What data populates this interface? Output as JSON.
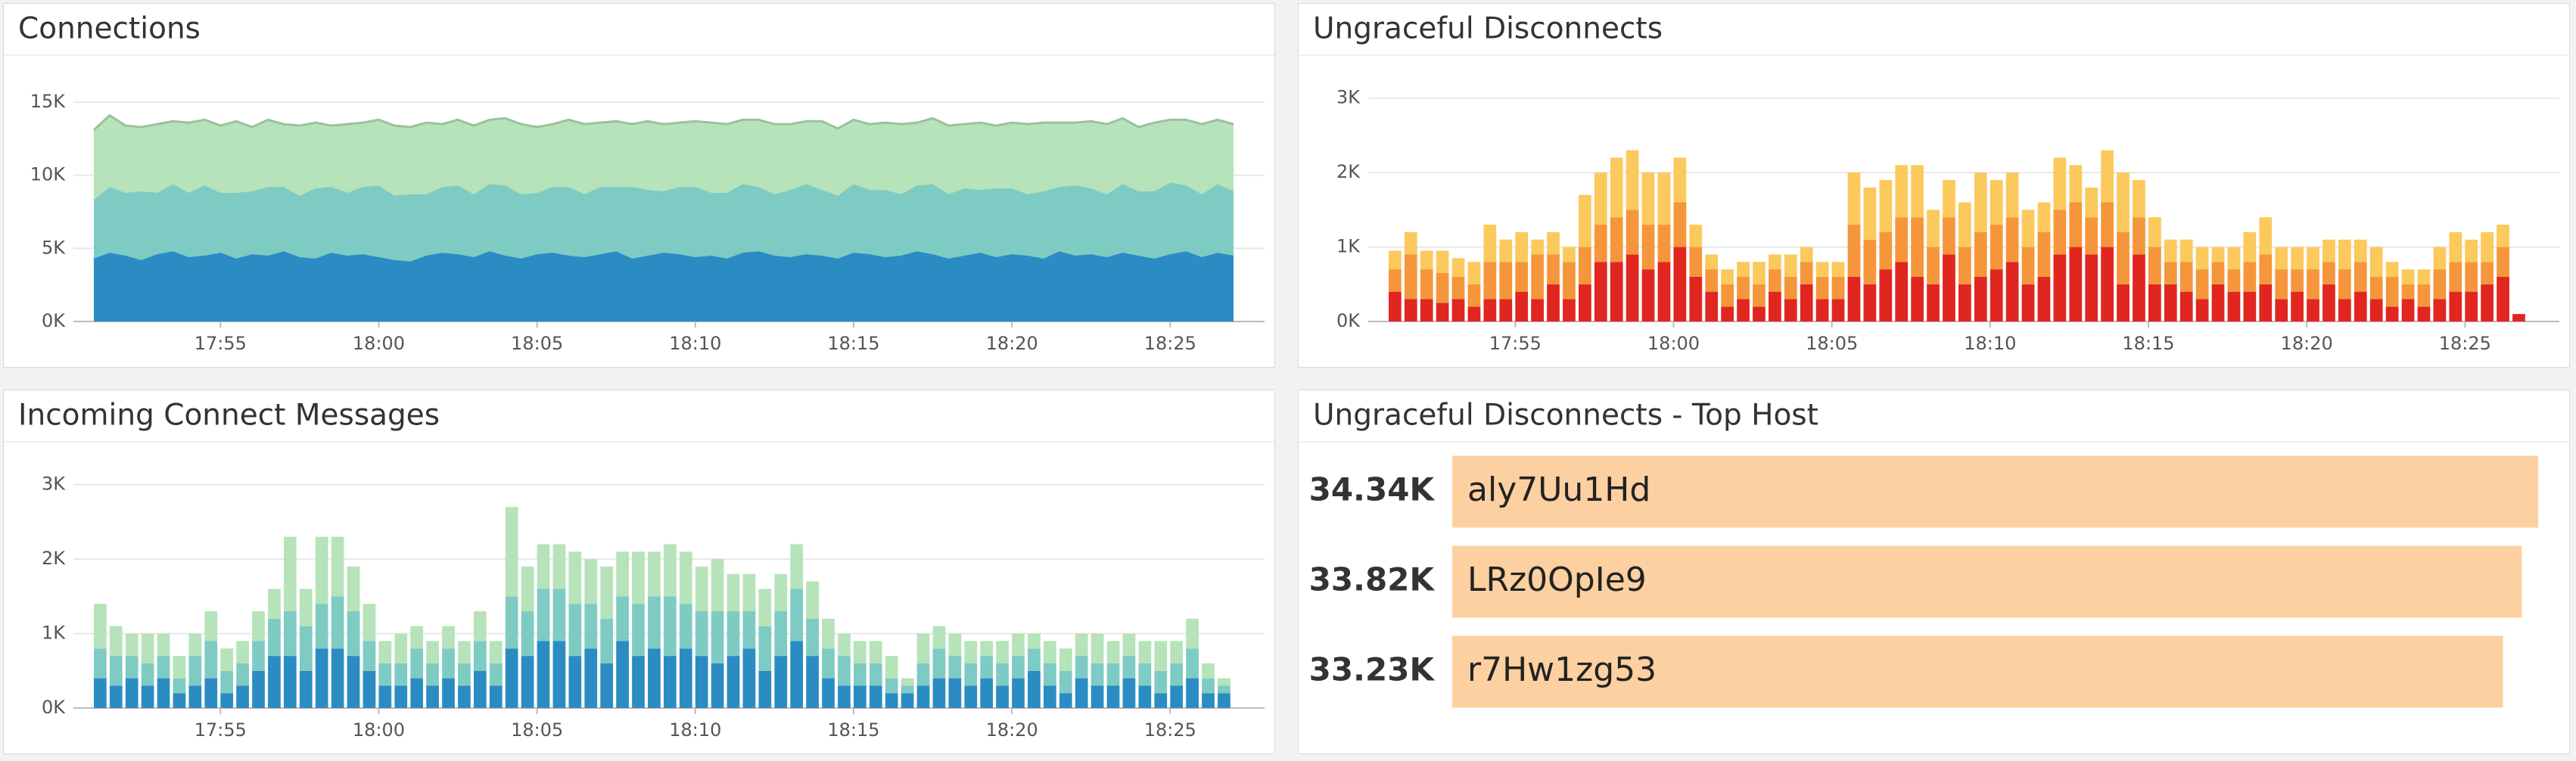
{
  "chart_data": [
    {
      "type": "area",
      "title": "Connections",
      "x": [
        1071,
        1071.5,
        1072,
        1072.5,
        1073,
        1073.5,
        1074,
        1074.5,
        1075,
        1075.5,
        1076,
        1076.5,
        1077,
        1077.5,
        1078,
        1078.5,
        1079,
        1079.5,
        1080,
        1080.5,
        1081,
        1081.5,
        1082,
        1082.5,
        1083,
        1083.5,
        1084,
        1084.5,
        1085,
        1085.5,
        1086,
        1086.5,
        1087,
        1087.5,
        1088,
        1088.5,
        1089,
        1089.5,
        1090,
        1090.5,
        1091,
        1091.5,
        1092,
        1092.5,
        1093,
        1093.5,
        1094,
        1094.5,
        1095,
        1095.5,
        1096,
        1096.5,
        1097,
        1097.5,
        1098,
        1098.5,
        1099,
        1099.5,
        1100,
        1100.5,
        1101,
        1101.5,
        1102,
        1102.5,
        1103,
        1103.5,
        1104,
        1104.5,
        1105,
        1105.5,
        1106,
        1106.5,
        1107
      ],
      "series": [
        {
          "color": "#2b8cc4",
          "values": [
            4300,
            4700,
            4500,
            4200,
            4600,
            4800,
            4400,
            4500,
            4700,
            4300,
            4600,
            4500,
            4800,
            4400,
            4300,
            4700,
            4500,
            4600,
            4400,
            4200,
            4100,
            4500,
            4700,
            4600,
            4400,
            4800,
            4500,
            4300,
            4600,
            4700,
            4500,
            4400,
            4600,
            4800,
            4300,
            4500,
            4700,
            4600,
            4400,
            4500,
            4300,
            4700,
            4800,
            4500,
            4400,
            4600,
            4500,
            4300,
            4700,
            4600,
            4400,
            4500,
            4800,
            4600,
            4300,
            4500,
            4700,
            4400,
            4600,
            4500,
            4300,
            4800,
            4500,
            4600,
            4400,
            4700,
            4500,
            4300,
            4600,
            4800,
            4400,
            4700,
            4500
          ]
        },
        {
          "color": "#7ecbc3",
          "values": [
            4000,
            4500,
            4300,
            4700,
            4200,
            4600,
            4400,
            4800,
            4100,
            4500,
            4300,
            4700,
            4400,
            4200,
            4800,
            4500,
            4300,
            4600,
            4900,
            4400,
            4600,
            4200,
            4500,
            4700,
            4300,
            4600,
            4800,
            4400,
            4200,
            4500,
            4700,
            4300,
            4600,
            4400,
            4900,
            4500,
            4200,
            4600,
            4800,
            4300,
            4500,
            4700,
            4400,
            4200,
            4600,
            4800,
            4500,
            4300,
            4700,
            4400,
            4600,
            4200,
            4500,
            4800,
            4400,
            4600,
            4300,
            4700,
            4500,
            4200,
            4600,
            4400,
            4800,
            4500,
            4300,
            4700,
            4400,
            4600,
            4900,
            4500,
            4300,
            4700,
            4400
          ]
        },
        {
          "color": "#b6e3ba",
          "values": [
            4800,
            4900,
            4600,
            4400,
            4700,
            4300,
            4800,
            4500,
            4600,
            4900,
            4400,
            4600,
            4300,
            4800,
            4500,
            4200,
            4700,
            4400,
            4500,
            4800,
            4600,
            4900,
            4300,
            4500,
            4700,
            4400,
            4600,
            4800,
            4500,
            4300,
            4600,
            4800,
            4400,
            4500,
            4300,
            4700,
            4600,
            4400,
            4500,
            4800,
            4700,
            4400,
            4600,
            4800,
            4500,
            4300,
            4700,
            4600,
            4400,
            4500,
            4600,
            4800,
            4300,
            4500,
            4700,
            4400,
            4600,
            4300,
            4500,
            4800,
            4700,
            4400,
            4300,
            4600,
            4800,
            4500,
            4400,
            4700,
            4300,
            4500,
            4800,
            4400,
            4600
          ]
        }
      ],
      "xlim": [
        1071,
        1107
      ],
      "xticks": [
        {
          "value": 1075,
          "label": "17:55"
        },
        {
          "value": 1080,
          "label": "18:00"
        },
        {
          "value": 1085,
          "label": "18:05"
        },
        {
          "value": 1090,
          "label": "18:10"
        },
        {
          "value": 1095,
          "label": "18:15"
        },
        {
          "value": 1100,
          "label": "18:20"
        },
        {
          "value": 1105,
          "label": "18:25"
        }
      ],
      "ylim": [
        0,
        16300
      ],
      "yticks": [
        {
          "value": 0,
          "label": "0K"
        },
        {
          "value": 5000,
          "label": "5K"
        },
        {
          "value": 10000,
          "label": "10K"
        },
        {
          "value": 15000,
          "label": "15K"
        }
      ],
      "grid": true
    },
    {
      "type": "bar",
      "title": "Ungraceful Disconnects",
      "x": [
        1071,
        1071.5,
        1072,
        1072.5,
        1073,
        1073.5,
        1074,
        1074.5,
        1075,
        1075.5,
        1076,
        1076.5,
        1077,
        1077.5,
        1078,
        1078.5,
        1079,
        1079.5,
        1080,
        1080.5,
        1081,
        1081.5,
        1082,
        1082.5,
        1083,
        1083.5,
        1084,
        1084.5,
        1085,
        1085.5,
        1086,
        1086.5,
        1087,
        1087.5,
        1088,
        1088.5,
        1089,
        1089.5,
        1090,
        1090.5,
        1091,
        1091.5,
        1092,
        1092.5,
        1093,
        1093.5,
        1094,
        1094.5,
        1095,
        1095.5,
        1096,
        1096.5,
        1097,
        1097.5,
        1098,
        1098.5,
        1099,
        1099.5,
        1100,
        1100.5,
        1101,
        1101.5,
        1102,
        1102.5,
        1103,
        1103.5,
        1104,
        1104.5,
        1105,
        1105.5,
        1106,
        1106.5
      ],
      "series": [
        {
          "color": "#e0261f",
          "values": [
            400,
            300,
            300,
            250,
            300,
            200,
            300,
            300,
            400,
            300,
            500,
            300,
            500,
            800,
            800,
            900,
            700,
            800,
            1000,
            600,
            400,
            200,
            300,
            200,
            400,
            300,
            500,
            300,
            300,
            600,
            500,
            700,
            800,
            600,
            500,
            900,
            500,
            600,
            700,
            800,
            500,
            600,
            900,
            1000,
            900,
            1000,
            500,
            900,
            500,
            500,
            400,
            300,
            500,
            400,
            400,
            500,
            300,
            400,
            300,
            500,
            300,
            400,
            300,
            200,
            300,
            200,
            300,
            400,
            400,
            500,
            600,
            100
          ]
        },
        {
          "color": "#f5963c",
          "values": [
            300,
            600,
            400,
            400,
            300,
            300,
            500,
            500,
            400,
            600,
            400,
            500,
            500,
            500,
            600,
            600,
            600,
            500,
            600,
            400,
            300,
            300,
            300,
            300,
            300,
            300,
            300,
            300,
            300,
            700,
            600,
            500,
            600,
            800,
            500,
            500,
            500,
            600,
            600,
            600,
            500,
            600,
            600,
            600,
            500,
            600,
            700,
            500,
            500,
            300,
            400,
            400,
            300,
            300,
            400,
            400,
            400,
            300,
            400,
            300,
            400,
            400,
            300,
            400,
            200,
            300,
            400,
            400,
            400,
            300,
            400,
            0
          ]
        },
        {
          "color": "#fcc95c",
          "values": [
            250,
            300,
            250,
            300,
            250,
            300,
            500,
            300,
            400,
            200,
            300,
            200,
            700,
            700,
            800,
            800,
            700,
            700,
            600,
            300,
            200,
            200,
            200,
            300,
            200,
            300,
            200,
            200,
            200,
            700,
            700,
            700,
            700,
            700,
            500,
            500,
            600,
            800,
            600,
            600,
            500,
            400,
            700,
            500,
            400,
            700,
            800,
            500,
            400,
            300,
            300,
            300,
            200,
            300,
            400,
            500,
            300,
            300,
            300,
            300,
            400,
            300,
            400,
            200,
            200,
            200,
            300,
            400,
            300,
            400,
            300,
            0
          ]
        }
      ],
      "xlim": [
        1071,
        1107
      ],
      "xticks": [
        {
          "value": 1075,
          "label": "17:55"
        },
        {
          "value": 1080,
          "label": "18:00"
        },
        {
          "value": 1085,
          "label": "18:05"
        },
        {
          "value": 1090,
          "label": "18:10"
        },
        {
          "value": 1095,
          "label": "18:15"
        },
        {
          "value": 1100,
          "label": "18:20"
        },
        {
          "value": 1105,
          "label": "18:25"
        }
      ],
      "ylim": [
        0,
        3200
      ],
      "yticks": [
        {
          "value": 0,
          "label": "0K"
        },
        {
          "value": 1000,
          "label": "1K"
        },
        {
          "value": 2000,
          "label": "2K"
        },
        {
          "value": 3000,
          "label": "3K"
        }
      ],
      "grid": true
    },
    {
      "type": "bar",
      "title": "Incoming Connect Messages",
      "x": [
        1071,
        1071.5,
        1072,
        1072.5,
        1073,
        1073.5,
        1074,
        1074.5,
        1075,
        1075.5,
        1076,
        1076.5,
        1077,
        1077.5,
        1078,
        1078.5,
        1079,
        1079.5,
        1080,
        1080.5,
        1081,
        1081.5,
        1082,
        1082.5,
        1083,
        1083.5,
        1084,
        1084.5,
        1085,
        1085.5,
        1086,
        1086.5,
        1087,
        1087.5,
        1088,
        1088.5,
        1089,
        1089.5,
        1090,
        1090.5,
        1091,
        1091.5,
        1092,
        1092.5,
        1093,
        1093.5,
        1094,
        1094.5,
        1095,
        1095.5,
        1096,
        1096.5,
        1097,
        1097.5,
        1098,
        1098.5,
        1099,
        1099.5,
        1100,
        1100.5,
        1101,
        1101.5,
        1102,
        1102.5,
        1103,
        1103.5,
        1104,
        1104.5,
        1105,
        1105.5,
        1106,
        1106.5
      ],
      "series": [
        {
          "color": "#2b8cc4",
          "values": [
            400,
            300,
            400,
            300,
            400,
            200,
            300,
            400,
            200,
            300,
            500,
            700,
            700,
            500,
            800,
            800,
            700,
            500,
            300,
            300,
            400,
            300,
            400,
            300,
            500,
            300,
            800,
            700,
            900,
            900,
            700,
            800,
            600,
            900,
            700,
            800,
            700,
            800,
            700,
            600,
            700,
            800,
            500,
            700,
            900,
            700,
            400,
            300,
            300,
            300,
            200,
            200,
            300,
            400,
            400,
            300,
            400,
            300,
            400,
            500,
            300,
            200,
            400,
            300,
            300,
            400,
            300,
            200,
            300,
            400,
            200,
            200
          ]
        },
        {
          "color": "#7ecbc3",
          "values": [
            400,
            400,
            300,
            300,
            300,
            200,
            400,
            500,
            300,
            300,
            400,
            500,
            600,
            600,
            600,
            700,
            600,
            400,
            300,
            300,
            400,
            300,
            400,
            300,
            400,
            300,
            700,
            600,
            700,
            700,
            700,
            600,
            600,
            600,
            700,
            700,
            800,
            600,
            600,
            700,
            600,
            500,
            600,
            600,
            700,
            500,
            400,
            400,
            300,
            300,
            200,
            100,
            300,
            400,
            300,
            300,
            300,
            300,
            300,
            300,
            300,
            300,
            300,
            300,
            300,
            300,
            300,
            300,
            300,
            400,
            200,
            100
          ]
        },
        {
          "color": "#b6e3ba",
          "values": [
            600,
            400,
            300,
            400,
            300,
            300,
            300,
            400,
            300,
            300,
            400,
            400,
            1000,
            500,
            900,
            800,
            600,
            500,
            300,
            400,
            300,
            300,
            300,
            300,
            400,
            300,
            1200,
            600,
            600,
            600,
            700,
            600,
            700,
            600,
            700,
            600,
            700,
            700,
            600,
            700,
            500,
            500,
            500,
            500,
            600,
            500,
            400,
            300,
            300,
            300,
            300,
            100,
            400,
            300,
            300,
            300,
            200,
            300,
            300,
            200,
            300,
            300,
            300,
            400,
            300,
            300,
            300,
            400,
            300,
            400,
            200,
            100
          ]
        }
      ],
      "xlim": [
        1071,
        1107
      ],
      "xticks": [
        {
          "value": 1075,
          "label": "17:55"
        },
        {
          "value": 1080,
          "label": "18:00"
        },
        {
          "value": 1085,
          "label": "18:05"
        },
        {
          "value": 1090,
          "label": "18:10"
        },
        {
          "value": 1095,
          "label": "18:15"
        },
        {
          "value": 1100,
          "label": "18:20"
        },
        {
          "value": 1105,
          "label": "18:25"
        }
      ],
      "ylim": [
        0,
        3200
      ],
      "yticks": [
        {
          "value": 0,
          "label": "0K"
        },
        {
          "value": 1000,
          "label": "1K"
        },
        {
          "value": 2000,
          "label": "2K"
        },
        {
          "value": 3000,
          "label": "3K"
        }
      ],
      "grid": true
    },
    {
      "type": "toplist",
      "title": "Ungraceful Disconnects - Top Host",
      "categories": [
        "aly7Uu1Hd",
        "LRz0OpIe9",
        "r7Hw1zg53"
      ],
      "values": [
        34340,
        33820,
        33230
      ],
      "value_labels": [
        "34.34K",
        "33.82K",
        "33.23K"
      ],
      "color": "#fcd0a0"
    }
  ]
}
